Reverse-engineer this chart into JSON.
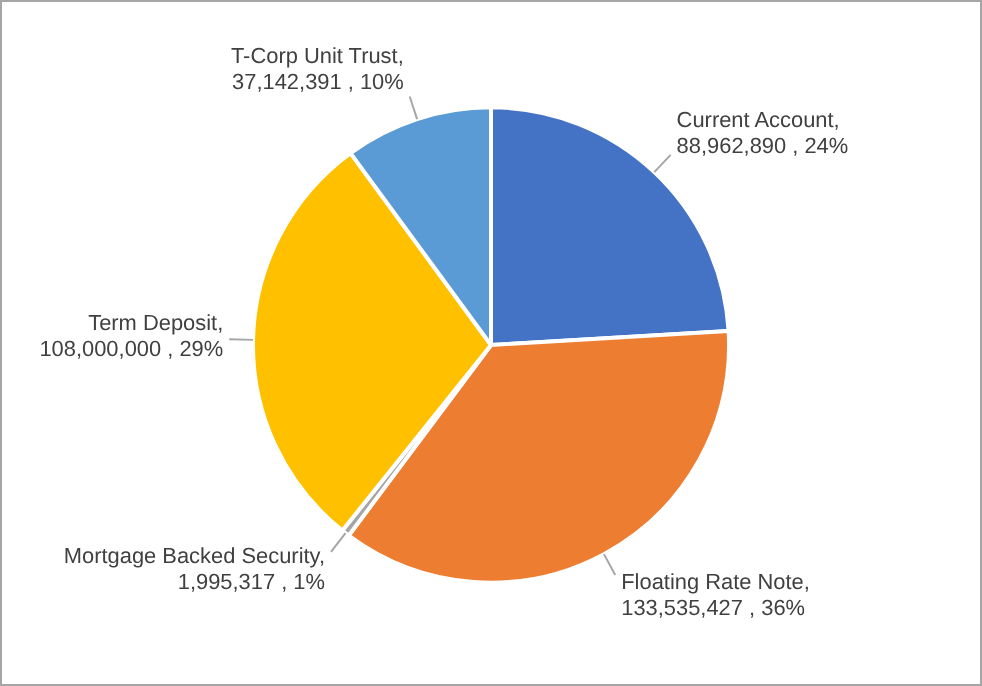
{
  "chart_data": {
    "type": "pie",
    "categories": [
      "Current Account",
      "Floating Rate Note",
      "Mortgage Backed Security",
      "Term Deposit",
      "T-Corp Unit Trust"
    ],
    "values": [
      88962890,
      133535427,
      1995317,
      108000000,
      37142391
    ],
    "colors": [
      "#4472c4",
      "#ed7d31",
      "#a5a5a5",
      "#ffc000",
      "#5b9bd5"
    ],
    "value_labels": [
      ", 88,962,890 , 24%",
      ", 133,535,427 , 36%",
      ", 1,995,317 , 1%",
      ", 108,000,000 , 29%",
      ", 37,142,391 , 10%"
    ]
  }
}
